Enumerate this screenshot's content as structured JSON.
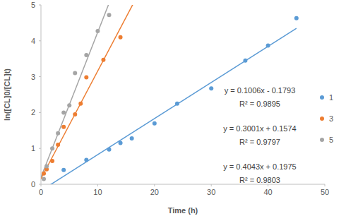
{
  "chart_data": {
    "type": "scatter",
    "x_label": "Time (h)",
    "y_label": "ln([CL]0/[CL]t)",
    "xlim": [
      0,
      50
    ],
    "xticks": [
      0,
      10,
      20,
      30,
      40,
      50
    ],
    "ylim": [
      0,
      5
    ],
    "yticks": [
      0,
      1,
      2,
      3,
      4,
      5
    ],
    "grid": false,
    "legend": "right",
    "series": [
      {
        "name": "1",
        "color": "#5b9bd5",
        "marker": "circle",
        "x": [
          4,
          8,
          12,
          14,
          16,
          20,
          24,
          30,
          36,
          40,
          45
        ],
        "values": [
          0.4,
          0.68,
          0.97,
          1.15,
          1.28,
          1.7,
          2.25,
          2.67,
          3.45,
          3.87,
          4.63
        ],
        "trendline": {
          "slope": 0.1006,
          "intercept": -0.1793,
          "x_range": [
            0,
            45
          ],
          "equation": "y = 0.1006x - 0.1793",
          "r2": "R² = 0.9895"
        }
      },
      {
        "name": "3",
        "color": "#ed7d31",
        "marker": "circle",
        "x": [
          0.5,
          1,
          2,
          3,
          4,
          6,
          7,
          8,
          11,
          14
        ],
        "values": [
          0.3,
          0.42,
          0.65,
          1.1,
          1.6,
          1.95,
          2.25,
          2.98,
          3.47,
          4.1
        ],
        "trendline": {
          "slope": 0.3001,
          "intercept": 0.1574,
          "x_range": [
            0,
            17
          ],
          "equation": "y = 0.3001x + 0.1574",
          "r2": "R² = 0.9797"
        }
      },
      {
        "name": "5",
        "color": "#a5a5a5",
        "marker": "circle",
        "x": [
          0.5,
          1,
          2,
          3,
          4,
          5,
          6,
          8,
          10,
          12
        ],
        "values": [
          0.15,
          0.5,
          1.0,
          1.42,
          2.0,
          2.2,
          3.1,
          3.6,
          4.27,
          4.72
        ],
        "trendline": {
          "slope": 0.4043,
          "intercept": 0.1975,
          "x_range": [
            0,
            13
          ],
          "equation": "y = 0.4043x + 0.1975",
          "r2": "R² = 0.9803"
        }
      }
    ]
  }
}
